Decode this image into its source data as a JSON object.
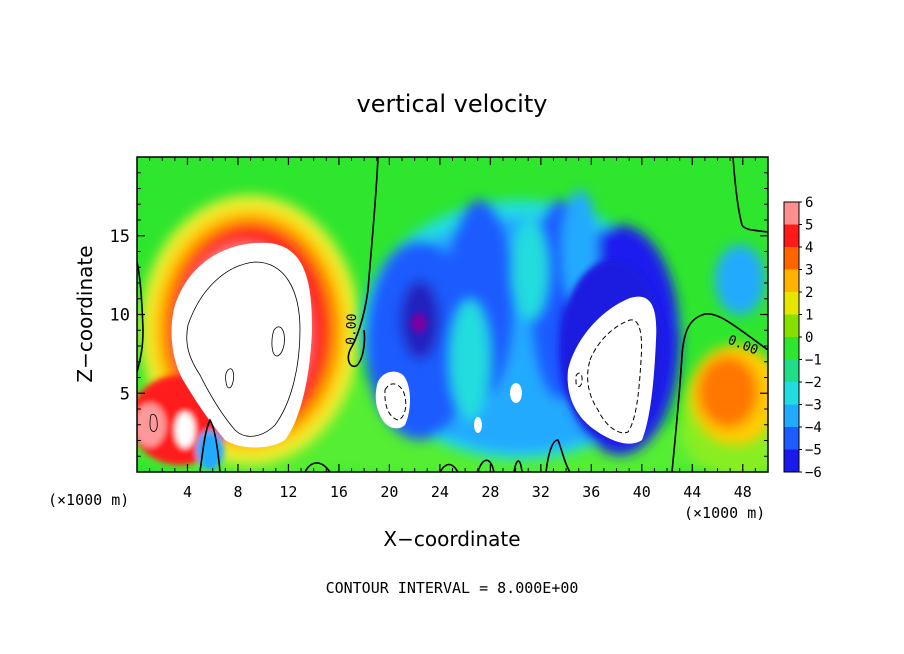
{
  "chart_data": {
    "type": "heatmap",
    "title": "vertical velocity",
    "xlabel": "X−coordinate",
    "ylabel": "Z−coordinate",
    "x_unit_note": "(×1000 m)",
    "y_unit_note": "(×1000 m)",
    "xlim": [
      0,
      50
    ],
    "ylim": [
      0,
      20
    ],
    "x_ticks": [
      4,
      8,
      12,
      16,
      20,
      24,
      28,
      32,
      36,
      40,
      44,
      48
    ],
    "y_ticks": [
      5,
      10,
      15
    ],
    "colorbar": {
      "range": [
        -6,
        6
      ],
      "labels": [
        "6",
        "5",
        "4",
        "3",
        "2",
        "1",
        "0",
        "−1",
        "−2",
        "−3",
        "−4",
        "−5",
        "−6"
      ]
    },
    "contour_labels": [
      "0.00",
      "0.00"
    ],
    "footer": "CONTOUR INTERVAL = 8.000E+00",
    "features": [
      {
        "type": "updraft",
        "x": 9.5,
        "z": 9,
        "peak": 6
      },
      {
        "type": "updraft",
        "x": 1.5,
        "z": 3,
        "peak": 6
      },
      {
        "type": "updraft",
        "x": 4.0,
        "z": 3,
        "peak": 5
      },
      {
        "type": "downdraft",
        "x": 37.5,
        "z": 6.5,
        "peak": -6
      },
      {
        "type": "downdraft",
        "x": 20.0,
        "z": 4.5,
        "peak": -6
      },
      {
        "type": "downdraft",
        "x": 22.5,
        "z": 9.5,
        "peak": -5
      },
      {
        "type": "downdraft",
        "x": 30.5,
        "z": 5,
        "peak": -6
      },
      {
        "type": "updraft",
        "x": 47.0,
        "z": 5,
        "peak": 3
      }
    ]
  }
}
